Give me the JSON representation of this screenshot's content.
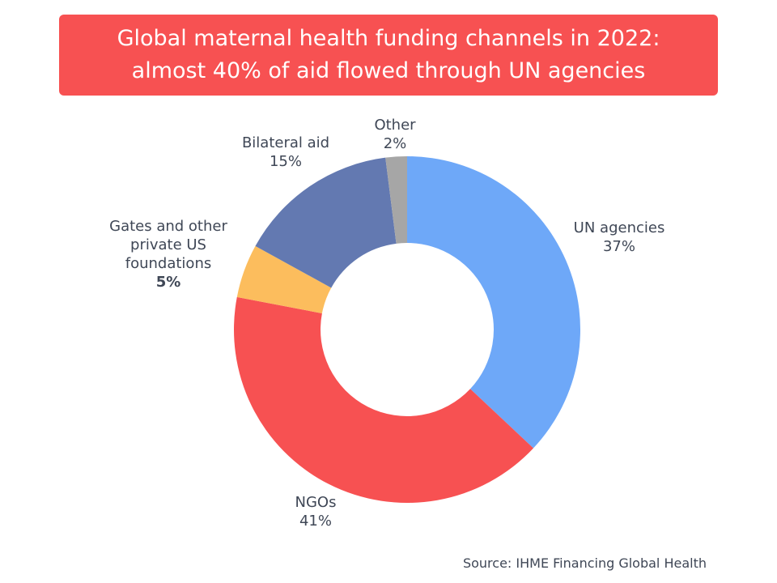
{
  "chart_data": {
    "type": "pie",
    "style": "donut",
    "title": "Global maternal health funding channels in 2022:\nalmost 40% of aid flowed through UN agencies",
    "title_lines": [
      "Global maternal health funding channels in 2022:",
      "almost 40% of aid flowed through UN agencies"
    ],
    "source": "Source: IHME Financing Global Health",
    "slices": [
      {
        "label": "UN agencies",
        "label_lines": [
          "UN agencies"
        ],
        "value": 37,
        "display": "37%",
        "color": "#6ea8f8"
      },
      {
        "label": "NGOs",
        "label_lines": [
          "NGOs"
        ],
        "value": 41,
        "display": "41%",
        "color": "#f75152"
      },
      {
        "label": "Gates and other private US foundations",
        "label_lines": [
          "Gates and other",
          "private US",
          "foundations"
        ],
        "value": 5,
        "display": "5%",
        "color": "#fcbd5d"
      },
      {
        "label": "Bilateral aid",
        "label_lines": [
          "Bilateral aid"
        ],
        "value": 15,
        "display": "15%",
        "color": "#6379b1"
      },
      {
        "label": "Other",
        "label_lines": [
          "Other"
        ],
        "value": 2,
        "display": "2%",
        "color": "#a6a6a6"
      }
    ],
    "legend": "none"
  }
}
